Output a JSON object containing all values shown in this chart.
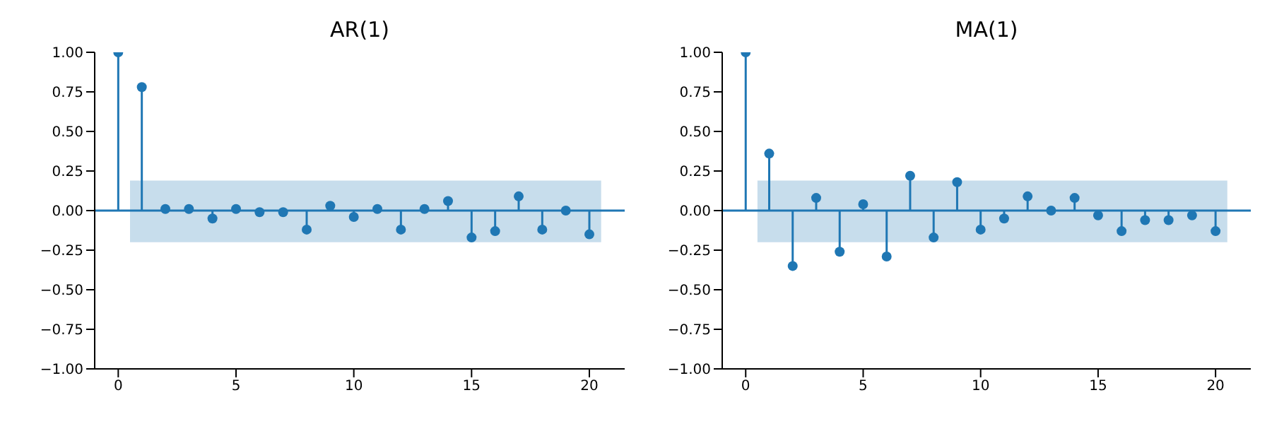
{
  "chart_data": [
    {
      "type": "lollipop",
      "title": "AR(1)",
      "x": [
        0,
        1,
        2,
        3,
        4,
        5,
        6,
        7,
        8,
        9,
        10,
        11,
        12,
        13,
        14,
        15,
        16,
        17,
        18,
        19,
        20
      ],
      "series": [
        {
          "color": "#1f77b4",
          "values": [
            1,
            0.78,
            0.01,
            0.01,
            -0.05,
            0.01,
            -0.01,
            -0.01,
            -0.12,
            0.03,
            -0.04,
            0.01,
            -0.12,
            0.01,
            0.06,
            -0.17,
            -0.13,
            0.09,
            -0.12,
            0,
            -0.15
          ]
        }
      ],
      "bands": [
        {
          "axis": "y",
          "from": -0.2,
          "to": 0.19,
          "color": "#c7ddec"
        }
      ],
      "ref_lines": [
        {
          "axis": "y",
          "value": 0,
          "color": "#1f77b4"
        }
      ],
      "xlim": [
        -1,
        21.5
      ],
      "xticks": [
        0,
        5,
        10,
        15,
        20
      ],
      "ylim": [
        -1,
        1
      ],
      "yticks": [
        {
          "value": -1,
          "label": "−1.00"
        },
        {
          "value": -0.75,
          "label": "−0.75"
        },
        {
          "value": -0.5,
          "label": "−0.50"
        },
        {
          "value": -0.25,
          "label": "−0.25"
        },
        {
          "value": 0,
          "label": "0.00"
        },
        {
          "value": 0.25,
          "label": "0.25"
        },
        {
          "value": 0.5,
          "label": "0.50"
        },
        {
          "value": 0.75,
          "label": "0.75"
        },
        {
          "value": 1,
          "label": "1.00"
        }
      ],
      "marker": "circle",
      "grid": false,
      "legend": false
    },
    {
      "type": "lollipop",
      "title": "MA(1)",
      "x": [
        0,
        1,
        2,
        3,
        4,
        5,
        6,
        7,
        8,
        9,
        10,
        11,
        12,
        13,
        14,
        15,
        16,
        17,
        18,
        19,
        20
      ],
      "series": [
        {
          "color": "#1f77b4",
          "values": [
            1,
            0.36,
            -0.35,
            0.08,
            -0.26,
            0.04,
            -0.29,
            0.22,
            -0.17,
            0.18,
            -0.12,
            -0.05,
            0.09,
            0,
            0.08,
            -0.03,
            -0.13,
            -0.06,
            -0.06,
            -0.03,
            -0.13
          ]
        }
      ],
      "bands": [
        {
          "axis": "y",
          "from": -0.2,
          "to": 0.19,
          "color": "#c7ddec"
        }
      ],
      "ref_lines": [
        {
          "axis": "y",
          "value": 0,
          "color": "#1f77b4"
        }
      ],
      "xlim": [
        -1,
        21.5
      ],
      "xticks": [
        0,
        5,
        10,
        15,
        20
      ],
      "ylim": [
        -1,
        1
      ],
      "yticks": [
        {
          "value": -1,
          "label": "−1.00"
        },
        {
          "value": -0.75,
          "label": "−0.75"
        },
        {
          "value": -0.5,
          "label": "−0.50"
        },
        {
          "value": -0.25,
          "label": "−0.25"
        },
        {
          "value": 0,
          "label": "0.00"
        },
        {
          "value": 0.25,
          "label": "0.25"
        },
        {
          "value": 0.5,
          "label": "0.50"
        },
        {
          "value": 0.75,
          "label": "0.75"
        },
        {
          "value": 1,
          "label": "1.00"
        }
      ],
      "marker": "circle",
      "grid": false,
      "legend": false
    }
  ]
}
